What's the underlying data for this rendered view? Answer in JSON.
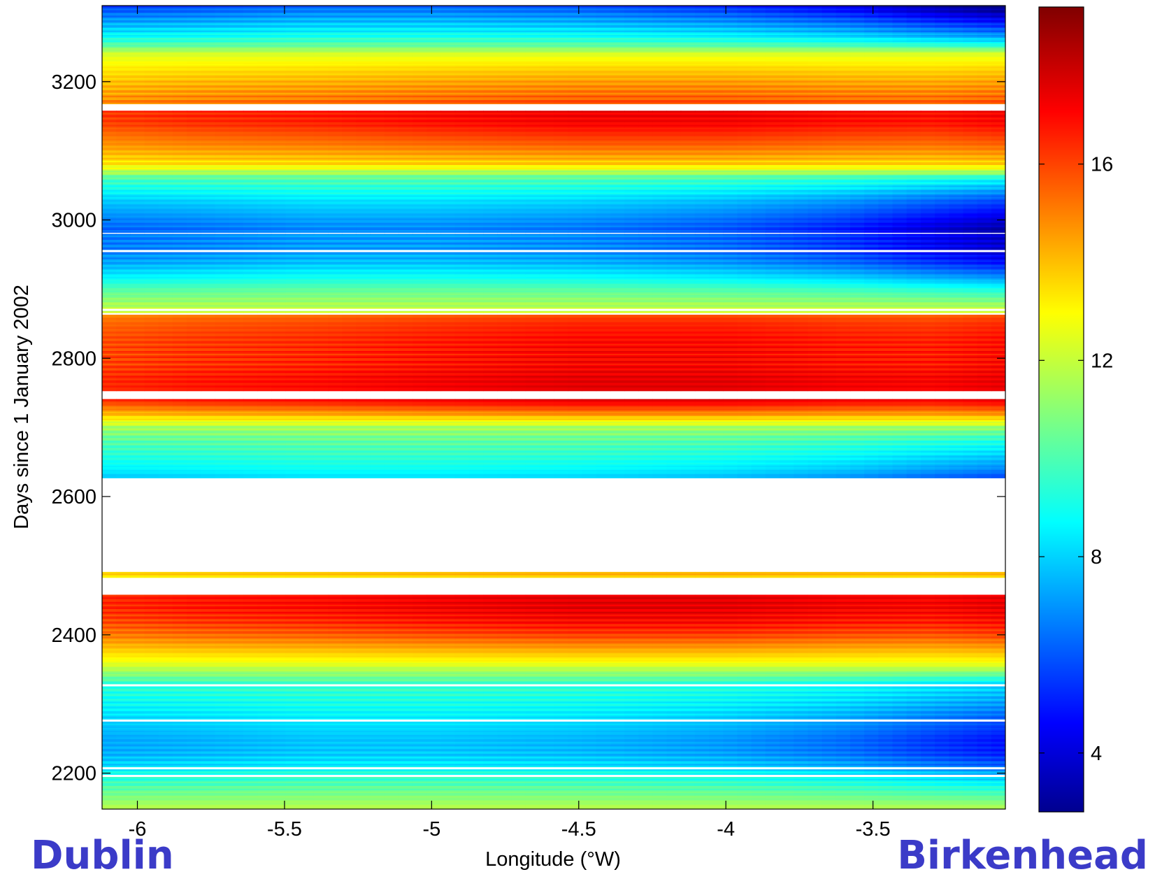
{
  "chart_data": {
    "type": "heatmap",
    "title": "",
    "xlabel": "Longitude (°W)",
    "ylabel": "Days since 1 January 2002",
    "xlim": [
      -6.12,
      -3.05
    ],
    "ylim": [
      2148,
      3310
    ],
    "x_ticks": [
      -6,
      -5.5,
      -5,
      -4.5,
      -4,
      -3.5
    ],
    "x_tick_labels": [
      "-6",
      "-5.5",
      "-5",
      "-4.5",
      "-4",
      "-3.5"
    ],
    "y_ticks": [
      2200,
      2400,
      2600,
      2800,
      3000,
      3200
    ],
    "y_tick_labels": [
      "2200",
      "2400",
      "2600",
      "2800",
      "3000",
      "3200"
    ],
    "colorbar": {
      "range": [
        2.8,
        19.2
      ],
      "ticks": [
        4,
        8,
        12,
        16
      ],
      "tick_labels": [
        "4",
        "8",
        "12",
        "16"
      ],
      "colormap": "jet"
    },
    "longitude_profile": {
      "x": [
        -6.12,
        -5.8,
        -5.4,
        -5.0,
        -4.5,
        -4.0,
        -3.6,
        -3.3,
        -3.05
      ],
      "summer_anomaly": [
        -0.5,
        -0.2,
        0.0,
        0.3,
        0.6,
        0.6,
        0.3,
        0.2,
        0.5
      ],
      "winter_anomaly": [
        0.3,
        0.5,
        0.9,
        0.9,
        0.6,
        0.0,
        -0.9,
        -2.0,
        -2.8
      ]
    },
    "series": [
      {
        "days": [
          2148,
          2165,
          2180,
          2200,
          2215,
          2230,
          2250,
          2275,
          2300,
          2330,
          2345,
          2360,
          2380,
          2400,
          2420,
          2440,
          2457
        ],
        "values": [
          12.0,
          11.0,
          10.2,
          9.0,
          8.0,
          7.4,
          7.3,
          8.0,
          8.8,
          9.6,
          11.2,
          12.8,
          14.2,
          15.6,
          16.5,
          17.0,
          17.0
        ]
      },
      {
        "days": [
          2483,
          2491
        ],
        "values": [
          13.8,
          13.8
        ]
      },
      {
        "days": [
          2627,
          2640,
          2660,
          2680,
          2700,
          2720,
          2740
        ],
        "values": [
          7.8,
          8.6,
          9.4,
          10.2,
          11.5,
          14.5,
          17.0
        ]
      },
      {
        "days": [
          2753,
          2770,
          2790,
          2810,
          2830,
          2850,
          2862
        ],
        "values": [
          17.0,
          17.0,
          16.6,
          16.5,
          16.4,
          16.0,
          15.5
        ]
      },
      {
        "days": [
          2866,
          2880,
          2900,
          2920,
          2940,
          2960,
          2980
        ],
        "values": [
          12.5,
          11.5,
          10.2,
          8.5,
          7.2,
          6.6,
          6.5
        ]
      },
      {
        "days": [
          2982,
          3000,
          3030,
          3060,
          3080,
          3110,
          3140,
          3158
        ],
        "values": [
          6.0,
          6.6,
          8.0,
          10.0,
          13.5,
          15.2,
          16.6,
          16.8
        ]
      },
      {
        "days": [
          3168,
          3180,
          3200,
          3220,
          3240,
          3255,
          3270,
          3290,
          3310
        ],
        "values": [
          15.5,
          15.0,
          14.3,
          13.5,
          12.5,
          10.0,
          8.5,
          7.0,
          5.5
        ]
      }
    ],
    "white_gaps_days": [
      2196,
      2207,
      2276,
      2327,
      2870,
      2955
    ]
  },
  "labels": {
    "left_place": "Dublin",
    "right_place": "Birkenhead"
  },
  "colors": {
    "place_labels": "#3b3bc8"
  }
}
